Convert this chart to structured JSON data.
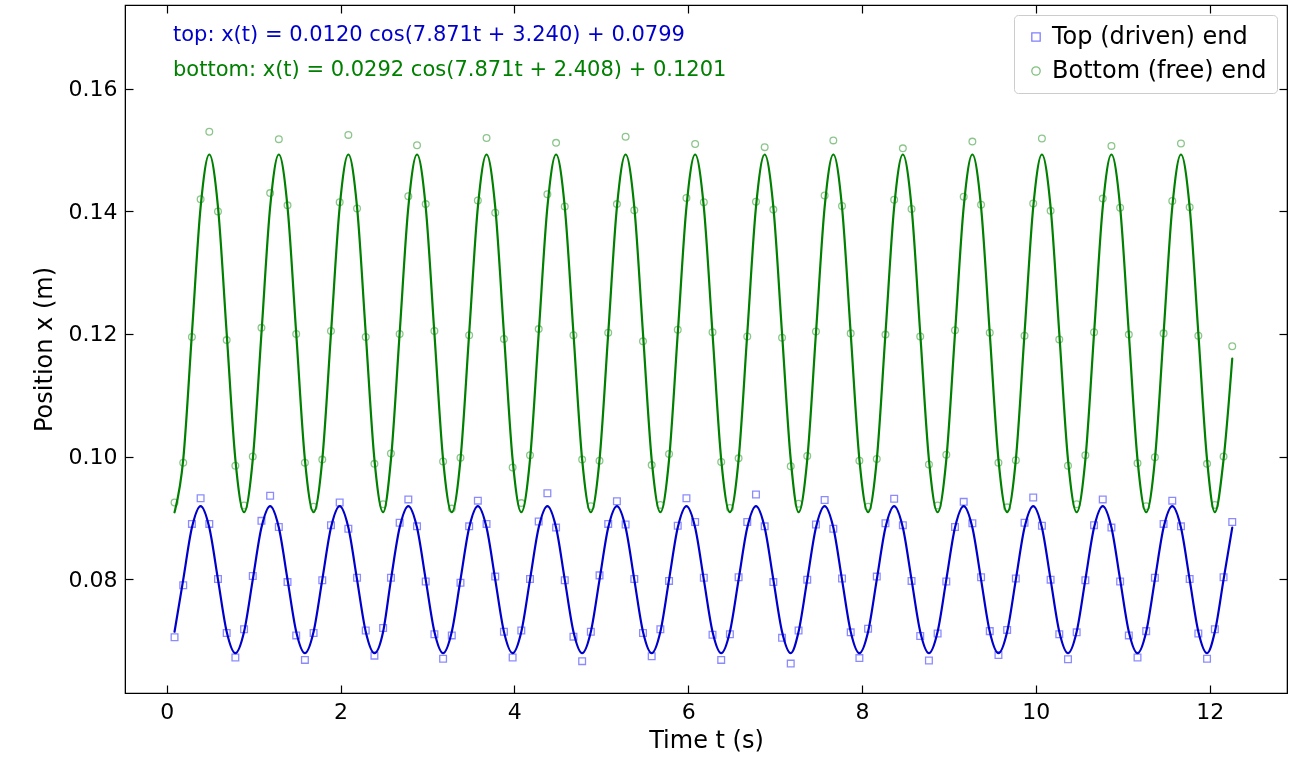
{
  "chart_data": {
    "type": "scatter",
    "xlabel": "Time t (s)",
    "ylabel": "Position x (m)",
    "annotations": [
      "top: x(t) = 0.0120 cos(7.871t + 3.240) + 0.0799",
      "bottom: x(t) = 0.0292 cos(7.871t + 2.408) + 0.1201"
    ],
    "xlim": [
      -0.48,
      12.89
    ],
    "ylim": [
      0.0614,
      0.1737
    ],
    "xticks": [
      0,
      2,
      4,
      6,
      8,
      10,
      12
    ],
    "yticks": [
      0.08,
      {
        "value": 0.1,
        "label": "0.10"
      },
      0.12,
      0.14,
      0.16
    ],
    "grid": false,
    "legend": "top right",
    "x": [
      0.09,
      0.19,
      0.29,
      0.39,
      0.49,
      0.59,
      0.69,
      0.79,
      0.89,
      0.99,
      1.09,
      1.19,
      1.29,
      1.39,
      1.49,
      1.59,
      1.69,
      1.79,
      1.89,
      1.99,
      2.09,
      2.19,
      2.29,
      2.39,
      2.49,
      2.58,
      2.68,
      2.78,
      2.88,
      2.98,
      3.08,
      3.18,
      3.28,
      3.38,
      3.48,
      3.58,
      3.68,
      3.78,
      3.88,
      3.98,
      4.08,
      4.18,
      4.28,
      4.38,
      4.48,
      4.58,
      4.68,
      4.78,
      4.88,
      4.98,
      5.08,
      5.18,
      5.28,
      5.38,
      5.48,
      5.58,
      5.68,
      5.78,
      5.88,
      5.98,
      6.08,
      6.18,
      6.28,
      6.38,
      6.48,
      6.58,
      6.68,
      6.78,
      6.88,
      6.98,
      7.08,
      7.18,
      7.27,
      7.37,
      7.47,
      7.57,
      7.67,
      7.77,
      7.87,
      7.97,
      8.07,
      8.17,
      8.27,
      8.37,
      8.47,
      8.57,
      8.67,
      8.77,
      8.87,
      8.97,
      9.07,
      9.17,
      9.27,
      9.37,
      9.47,
      9.57,
      9.67,
      9.77,
      9.87,
      9.97,
      10.07,
      10.17,
      10.27,
      10.37,
      10.47,
      10.57,
      10.67,
      10.77,
      10.87,
      10.97,
      11.07,
      11.17,
      11.27,
      11.37,
      11.47,
      11.57,
      11.67,
      11.77,
      11.87,
      11.97,
      12.06,
      12.16,
      12.26
    ],
    "series": [
      {
        "name": "Top (driven) end",
        "marker": "square",
        "color": "#0000ff",
        "values": [
          0.0705,
          0.079,
          0.089,
          0.0932,
          0.089,
          0.08,
          0.0712,
          0.0672,
          0.0718,
          0.0805,
          0.0895,
          0.0936,
          0.0885,
          0.0795,
          0.0708,
          0.0668,
          0.0712,
          0.0798,
          0.0888,
          0.0925,
          0.0882,
          0.0802,
          0.0716,
          0.0675,
          0.072,
          0.0802,
          0.0892,
          0.093,
          0.0886,
          0.0796,
          0.071,
          0.067,
          0.0708,
          0.0794,
          0.0886,
          0.0928,
          0.089,
          0.0804,
          0.0714,
          0.0672,
          0.0716,
          0.08,
          0.0894,
          0.094,
          0.0884,
          0.0798,
          0.0706,
          0.0666,
          0.0714,
          0.0806,
          0.089,
          0.0927,
          0.0889,
          0.08,
          0.0712,
          0.0674,
          0.0718,
          0.0797,
          0.0887,
          0.0932,
          0.0893,
          0.0802,
          0.0709,
          0.0668,
          0.071,
          0.0803,
          0.0893,
          0.0938,
          0.0886,
          0.0795,
          0.0704,
          0.0662,
          0.0716,
          0.0799,
          0.0889,
          0.0929,
          0.0882,
          0.0801,
          0.0713,
          0.0671,
          0.0719,
          0.0804,
          0.0891,
          0.0931,
          0.0888,
          0.0797,
          0.0707,
          0.0667,
          0.0711,
          0.0796,
          0.0885,
          0.0926,
          0.0891,
          0.0803,
          0.0715,
          0.0676,
          0.0717,
          0.0801,
          0.0892,
          0.0933,
          0.0887,
          0.0799,
          0.071,
          0.0669,
          0.0713,
          0.0798,
          0.0888,
          0.093,
          0.0884,
          0.0796,
          0.0708,
          0.0672,
          0.0715,
          0.0802,
          0.089,
          0.0928,
          0.0886,
          0.08,
          0.0711,
          0.067,
          0.0718,
          0.0803,
          0.0893
        ]
      },
      {
        "name": "Bottom (free) end",
        "marker": "circle",
        "color": "#008000",
        "values": [
          0.0925,
          0.099,
          0.1195,
          0.142,
          0.153,
          0.14,
          0.119,
          0.0985,
          0.092,
          0.1,
          0.121,
          0.143,
          0.1518,
          0.141,
          0.12,
          0.099,
          0.0918,
          0.0995,
          0.1205,
          0.1415,
          0.1525,
          0.1405,
          0.1195,
          0.0988,
          0.0922,
          0.1005,
          0.12,
          0.1425,
          0.1508,
          0.1412,
          0.1205,
          0.0992,
          0.0915,
          0.0998,
          0.1198,
          0.1418,
          0.152,
          0.1398,
          0.1192,
          0.0982,
          0.0924,
          0.1002,
          0.1208,
          0.1428,
          0.1512,
          0.1408,
          0.1198,
          0.0995,
          0.0919,
          0.0993,
          0.1202,
          0.1412,
          0.1522,
          0.1402,
          0.1188,
          0.0986,
          0.0921,
          0.1004,
          0.1207,
          0.1422,
          0.151,
          0.1415,
          0.1203,
          0.0991,
          0.0916,
          0.0997,
          0.1196,
          0.1416,
          0.1505,
          0.1403,
          0.1194,
          0.0984,
          0.0923,
          0.1001,
          0.1204,
          0.1426,
          0.1516,
          0.1409,
          0.1201,
          0.0993,
          0.0918,
          0.0996,
          0.1199,
          0.1419,
          0.1503,
          0.1404,
          0.1196,
          0.0987,
          0.092,
          0.1003,
          0.1206,
          0.1424,
          0.1514,
          0.1411,
          0.1202,
          0.099,
          0.0917,
          0.0994,
          0.1197,
          0.1413,
          0.1519,
          0.1401,
          0.1191,
          0.0985,
          0.0922,
          0.1002,
          0.1203,
          0.1421,
          0.1507,
          0.1406,
          0.1199,
          0.0989,
          0.0919,
          0.0999,
          0.1201,
          0.1417,
          0.1511,
          0.1407,
          0.1197,
          0.0988,
          0.0921,
          0.1,
          0.118
        ]
      },
      {
        "type": "line",
        "color": "#0000cc",
        "values": [
          0.0714,
          0.0799,
          0.0884,
          0.0919,
          0.0884,
          0.0799,
          0.0714,
          0.0679,
          0.0714,
          0.0799,
          0.0884,
          0.0919,
          0.0884,
          0.0799,
          0.0714,
          0.0679,
          0.0714,
          0.0799,
          0.0884,
          0.0919,
          0.0884,
          0.0799,
          0.0714,
          0.0679,
          0.0714,
          0.0799,
          0.0884,
          0.0919,
          0.0884,
          0.0799,
          0.0714,
          0.0679,
          0.0714,
          0.0799,
          0.0884,
          0.0919,
          0.0884,
          0.0799,
          0.0714,
          0.0679,
          0.0714,
          0.0799,
          0.0884,
          0.0919,
          0.0884,
          0.0799,
          0.0714,
          0.0679,
          0.0714,
          0.0799,
          0.0884,
          0.0919,
          0.0884,
          0.0799,
          0.0714,
          0.0679,
          0.0714,
          0.0799,
          0.0884,
          0.0919,
          0.0884,
          0.0799,
          0.0714,
          0.0679,
          0.0714,
          0.0799,
          0.0884,
          0.0919,
          0.0884,
          0.0799,
          0.0714,
          0.0679,
          0.0714,
          0.0799,
          0.0884,
          0.0919,
          0.0884,
          0.0799,
          0.0714,
          0.0679,
          0.0714,
          0.0799,
          0.0884,
          0.0919,
          0.0884,
          0.0799,
          0.0714,
          0.0679,
          0.0714,
          0.0799,
          0.0884,
          0.0919,
          0.0884,
          0.0799,
          0.0714,
          0.0679,
          0.0714,
          0.0799,
          0.0884,
          0.0919,
          0.0884,
          0.0799,
          0.0714,
          0.0679,
          0.0714,
          0.0799,
          0.0884,
          0.0919,
          0.0884,
          0.0799,
          0.0714,
          0.0679,
          0.0714,
          0.0799,
          0.0884,
          0.0919,
          0.0884,
          0.0799,
          0.0714,
          0.0679,
          0.0714,
          0.0799,
          0.0884
        ]
      },
      {
        "type": "line",
        "color": "#008000",
        "values": [
          0.0909,
          0.0995,
          0.1201,
          0.1407,
          0.1493,
          0.1407,
          0.1201,
          0.0995,
          0.0909,
          0.0995,
          0.1201,
          0.1407,
          0.1493,
          0.1407,
          0.1201,
          0.0995,
          0.0909,
          0.0995,
          0.1201,
          0.1407,
          0.1493,
          0.1407,
          0.1201,
          0.0995,
          0.0909,
          0.0995,
          0.1201,
          0.1407,
          0.1493,
          0.1407,
          0.1201,
          0.0995,
          0.0909,
          0.0995,
          0.1201,
          0.1407,
          0.1493,
          0.1407,
          0.1201,
          0.0995,
          0.0909,
          0.0995,
          0.1201,
          0.1407,
          0.1493,
          0.1407,
          0.1201,
          0.0995,
          0.0909,
          0.0995,
          0.1201,
          0.1407,
          0.1493,
          0.1407,
          0.1201,
          0.0995,
          0.0909,
          0.0995,
          0.1201,
          0.1407,
          0.1493,
          0.1407,
          0.1201,
          0.0995,
          0.0909,
          0.0995,
          0.1201,
          0.1407,
          0.1493,
          0.1407,
          0.1201,
          0.0995,
          0.0909,
          0.0995,
          0.1201,
          0.1407,
          0.1493,
          0.1407,
          0.1201,
          0.0995,
          0.0909,
          0.0995,
          0.1201,
          0.1407,
          0.1493,
          0.1407,
          0.1201,
          0.0995,
          0.0909,
          0.0995,
          0.1201,
          0.1407,
          0.1493,
          0.1407,
          0.1201,
          0.0995,
          0.0909,
          0.0995,
          0.1201,
          0.1407,
          0.1493,
          0.1407,
          0.1201,
          0.0995,
          0.0909,
          0.0995,
          0.1201,
          0.1407,
          0.1493,
          0.1407,
          0.1201,
          0.0995,
          0.0909,
          0.0995,
          0.1201,
          0.1407,
          0.1493,
          0.1407,
          0.1201,
          0.0995,
          0.0909,
          0.0995,
          0.116
        ]
      }
    ]
  }
}
